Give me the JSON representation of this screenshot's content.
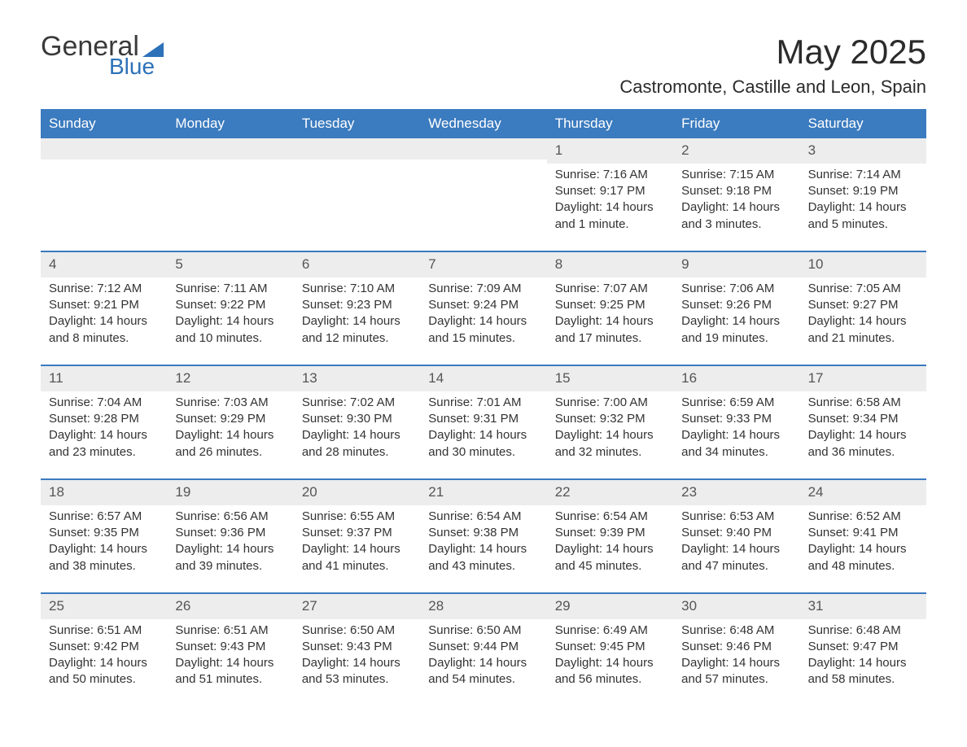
{
  "logo": {
    "word1": "General",
    "word2": "Blue"
  },
  "title": "May 2025",
  "location": "Castromonte, Castille and Leon, Spain",
  "colors": {
    "header_bg": "#3b7bbf",
    "header_text": "#ffffff",
    "daynum_bg": "#ededed",
    "row_border": "#3b7bbf",
    "body_text": "#333333",
    "logo_blue": "#2d72b8"
  },
  "weekdays": [
    "Sunday",
    "Monday",
    "Tuesday",
    "Wednesday",
    "Thursday",
    "Friday",
    "Saturday"
  ],
  "labels": {
    "sunrise": "Sunrise",
    "sunset": "Sunset",
    "daylight": "Daylight"
  },
  "weeks": [
    [
      null,
      null,
      null,
      null,
      {
        "n": "1",
        "sunrise": "7:16 AM",
        "sunset": "9:17 PM",
        "day": "14 hours and 1 minute."
      },
      {
        "n": "2",
        "sunrise": "7:15 AM",
        "sunset": "9:18 PM",
        "day": "14 hours and 3 minutes."
      },
      {
        "n": "3",
        "sunrise": "7:14 AM",
        "sunset": "9:19 PM",
        "day": "14 hours and 5 minutes."
      }
    ],
    [
      {
        "n": "4",
        "sunrise": "7:12 AM",
        "sunset": "9:21 PM",
        "day": "14 hours and 8 minutes."
      },
      {
        "n": "5",
        "sunrise": "7:11 AM",
        "sunset": "9:22 PM",
        "day": "14 hours and 10 minutes."
      },
      {
        "n": "6",
        "sunrise": "7:10 AM",
        "sunset": "9:23 PM",
        "day": "14 hours and 12 minutes."
      },
      {
        "n": "7",
        "sunrise": "7:09 AM",
        "sunset": "9:24 PM",
        "day": "14 hours and 15 minutes."
      },
      {
        "n": "8",
        "sunrise": "7:07 AM",
        "sunset": "9:25 PM",
        "day": "14 hours and 17 minutes."
      },
      {
        "n": "9",
        "sunrise": "7:06 AM",
        "sunset": "9:26 PM",
        "day": "14 hours and 19 minutes."
      },
      {
        "n": "10",
        "sunrise": "7:05 AM",
        "sunset": "9:27 PM",
        "day": "14 hours and 21 minutes."
      }
    ],
    [
      {
        "n": "11",
        "sunrise": "7:04 AM",
        "sunset": "9:28 PM",
        "day": "14 hours and 23 minutes."
      },
      {
        "n": "12",
        "sunrise": "7:03 AM",
        "sunset": "9:29 PM",
        "day": "14 hours and 26 minutes."
      },
      {
        "n": "13",
        "sunrise": "7:02 AM",
        "sunset": "9:30 PM",
        "day": "14 hours and 28 minutes."
      },
      {
        "n": "14",
        "sunrise": "7:01 AM",
        "sunset": "9:31 PM",
        "day": "14 hours and 30 minutes."
      },
      {
        "n": "15",
        "sunrise": "7:00 AM",
        "sunset": "9:32 PM",
        "day": "14 hours and 32 minutes."
      },
      {
        "n": "16",
        "sunrise": "6:59 AM",
        "sunset": "9:33 PM",
        "day": "14 hours and 34 minutes."
      },
      {
        "n": "17",
        "sunrise": "6:58 AM",
        "sunset": "9:34 PM",
        "day": "14 hours and 36 minutes."
      }
    ],
    [
      {
        "n": "18",
        "sunrise": "6:57 AM",
        "sunset": "9:35 PM",
        "day": "14 hours and 38 minutes."
      },
      {
        "n": "19",
        "sunrise": "6:56 AM",
        "sunset": "9:36 PM",
        "day": "14 hours and 39 minutes."
      },
      {
        "n": "20",
        "sunrise": "6:55 AM",
        "sunset": "9:37 PM",
        "day": "14 hours and 41 minutes."
      },
      {
        "n": "21",
        "sunrise": "6:54 AM",
        "sunset": "9:38 PM",
        "day": "14 hours and 43 minutes."
      },
      {
        "n": "22",
        "sunrise": "6:54 AM",
        "sunset": "9:39 PM",
        "day": "14 hours and 45 minutes."
      },
      {
        "n": "23",
        "sunrise": "6:53 AM",
        "sunset": "9:40 PM",
        "day": "14 hours and 47 minutes."
      },
      {
        "n": "24",
        "sunrise": "6:52 AM",
        "sunset": "9:41 PM",
        "day": "14 hours and 48 minutes."
      }
    ],
    [
      {
        "n": "25",
        "sunrise": "6:51 AM",
        "sunset": "9:42 PM",
        "day": "14 hours and 50 minutes."
      },
      {
        "n": "26",
        "sunrise": "6:51 AM",
        "sunset": "9:43 PM",
        "day": "14 hours and 51 minutes."
      },
      {
        "n": "27",
        "sunrise": "6:50 AM",
        "sunset": "9:43 PM",
        "day": "14 hours and 53 minutes."
      },
      {
        "n": "28",
        "sunrise": "6:50 AM",
        "sunset": "9:44 PM",
        "day": "14 hours and 54 minutes."
      },
      {
        "n": "29",
        "sunrise": "6:49 AM",
        "sunset": "9:45 PM",
        "day": "14 hours and 56 minutes."
      },
      {
        "n": "30",
        "sunrise": "6:48 AM",
        "sunset": "9:46 PM",
        "day": "14 hours and 57 minutes."
      },
      {
        "n": "31",
        "sunrise": "6:48 AM",
        "sunset": "9:47 PM",
        "day": "14 hours and 58 minutes."
      }
    ]
  ]
}
